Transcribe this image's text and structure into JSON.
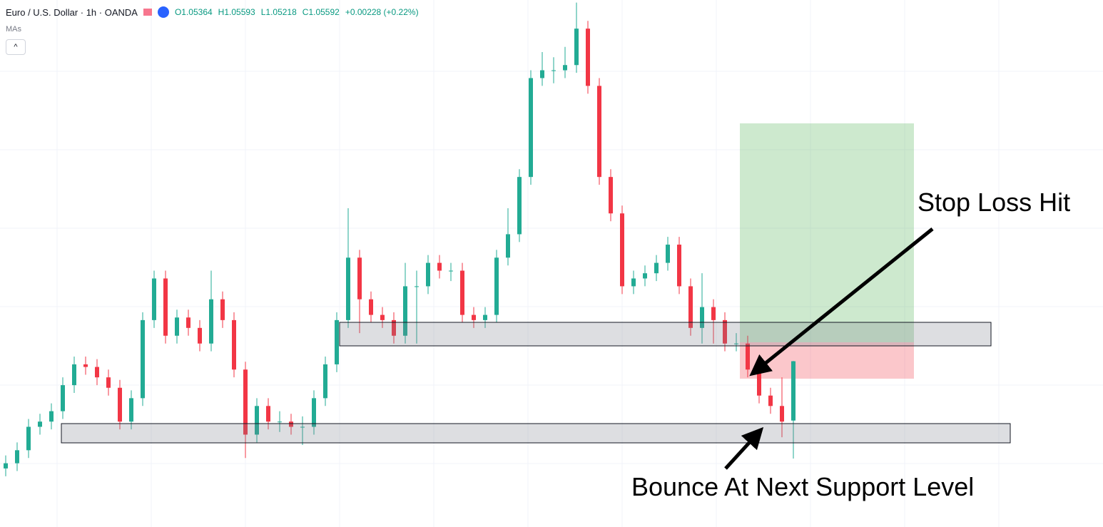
{
  "chart_data": {
    "type": "candlestick",
    "title": "Euro / U.S. Dollar · 1h · OANDA",
    "legend_values": {
      "open": "O1.05364",
      "high": "H1.05593",
      "low": "L1.05218",
      "close": "C1.05592",
      "change": "+0.00228 (+0.22%)"
    },
    "indicator_label": "MAs",
    "annotations": [
      "Stop Loss Hit",
      "Bounce At Next Support Level"
    ],
    "up_color": "#22ab94",
    "down_color": "#f23645",
    "ylim": [
      1.04955,
      1.0698
    ],
    "ohlc": [
      [
        1.0518,
        1.0523,
        1.0515,
        1.052
      ],
      [
        1.052,
        1.0528,
        1.0517,
        1.0525
      ],
      [
        1.0525,
        1.0537,
        1.0522,
        1.0534
      ],
      [
        1.0534,
        1.0539,
        1.0531,
        1.0536
      ],
      [
        1.0536,
        1.0543,
        1.0533,
        1.054
      ],
      [
        1.054,
        1.0553,
        1.0537,
        1.055
      ],
      [
        1.055,
        1.0561,
        1.0547,
        1.0558
      ],
      [
        1.0558,
        1.0561,
        1.0554,
        1.0557
      ],
      [
        1.0557,
        1.056,
        1.055,
        1.0553
      ],
      [
        1.0553,
        1.0556,
        1.0546,
        1.0549
      ],
      [
        1.0549,
        1.0552,
        1.0533,
        1.0536
      ],
      [
        1.0536,
        1.0548,
        1.0533,
        1.0545
      ],
      [
        1.0545,
        1.0578,
        1.0542,
        1.0575
      ],
      [
        1.0575,
        1.0594,
        1.0572,
        1.0591
      ],
      [
        1.0591,
        1.0594,
        1.0566,
        1.0569
      ],
      [
        1.0569,
        1.0579,
        1.0566,
        1.0576
      ],
      [
        1.0576,
        1.0579,
        1.0569,
        1.0572
      ],
      [
        1.0572,
        1.0575,
        1.0563,
        1.0566
      ],
      [
        1.0566,
        1.0594,
        1.0563,
        1.0583
      ],
      [
        1.0583,
        1.0586,
        1.0572,
        1.0575
      ],
      [
        1.0575,
        1.0578,
        1.0553,
        1.0556
      ],
      [
        1.0556,
        1.0559,
        1.0522,
        1.0531
      ],
      [
        1.0531,
        1.0545,
        1.0528,
        1.0542
      ],
      [
        1.0542,
        1.0545,
        1.0533,
        1.0536
      ],
      [
        1.0536,
        1.054,
        1.0532,
        1.0536
      ],
      [
        1.0536,
        1.0539,
        1.0531,
        1.0534
      ],
      [
        1.0534,
        1.0538,
        1.0527,
        1.0534
      ],
      [
        1.0534,
        1.0548,
        1.0531,
        1.0545
      ],
      [
        1.0545,
        1.0561,
        1.0542,
        1.0558
      ],
      [
        1.0558,
        1.0578,
        1.0555,
        1.0575
      ],
      [
        1.0575,
        1.0618,
        1.0572,
        1.0599
      ],
      [
        1.0599,
        1.0602,
        1.057,
        1.0583
      ],
      [
        1.0583,
        1.0586,
        1.0574,
        1.0577
      ],
      [
        1.0577,
        1.058,
        1.0572,
        1.0575
      ],
      [
        1.0575,
        1.0578,
        1.0566,
        1.0569
      ],
      [
        1.0569,
        1.0597,
        1.0566,
        1.0588
      ],
      [
        1.0588,
        1.0594,
        1.0566,
        1.0588
      ],
      [
        1.0588,
        1.06,
        1.0585,
        1.0597
      ],
      [
        1.0597,
        1.06,
        1.0591,
        1.0594
      ],
      [
        1.0594,
        1.0597,
        1.059,
        1.0594
      ],
      [
        1.0594,
        1.0597,
        1.0574,
        1.0577
      ],
      [
        1.0577,
        1.058,
        1.0572,
        1.0575
      ],
      [
        1.0575,
        1.058,
        1.0572,
        1.0577
      ],
      [
        1.0577,
        1.0602,
        1.0574,
        1.0599
      ],
      [
        1.0599,
        1.0618,
        1.0596,
        1.0608
      ],
      [
        1.0608,
        1.0633,
        1.0605,
        1.063
      ],
      [
        1.063,
        1.0671,
        1.0627,
        1.0668
      ],
      [
        1.0668,
        1.0678,
        1.0665,
        1.0671
      ],
      [
        1.0671,
        1.0676,
        1.0666,
        1.0671
      ],
      [
        1.0671,
        1.068,
        1.0668,
        1.0673
      ],
      [
        1.0673,
        1.0697,
        1.067,
        1.0687
      ],
      [
        1.0687,
        1.069,
        1.0662,
        1.0665
      ],
      [
        1.0665,
        1.0668,
        1.0627,
        1.063
      ],
      [
        1.063,
        1.0633,
        1.0613,
        1.0616
      ],
      [
        1.0616,
        1.0619,
        1.0585,
        1.0588
      ],
      [
        1.0588,
        1.0594,
        1.0585,
        1.0591
      ],
      [
        1.0591,
        1.0596,
        1.0588,
        1.0593
      ],
      [
        1.0593,
        1.06,
        1.059,
        1.0597
      ],
      [
        1.0597,
        1.0607,
        1.0594,
        1.0604
      ],
      [
        1.0604,
        1.0607,
        1.0585,
        1.0588
      ],
      [
        1.0588,
        1.0591,
        1.0569,
        1.0572
      ],
      [
        1.0572,
        1.0593,
        1.0566,
        1.058
      ],
      [
        1.058,
        1.0583,
        1.0566,
        1.0575
      ],
      [
        1.0575,
        1.0578,
        1.0563,
        1.0566
      ],
      [
        1.0566,
        1.057,
        1.0563,
        1.0566
      ],
      [
        1.0566,
        1.0569,
        1.0553,
        1.0556
      ],
      [
        1.0556,
        1.0559,
        1.0543,
        1.0546
      ],
      [
        1.0546,
        1.0549,
        1.0539,
        1.0542
      ],
      [
        1.0542,
        1.0553,
        1.053,
        1.0536
      ],
      [
        1.05364,
        1.05593,
        1.05218,
        1.05592
      ]
    ]
  }
}
